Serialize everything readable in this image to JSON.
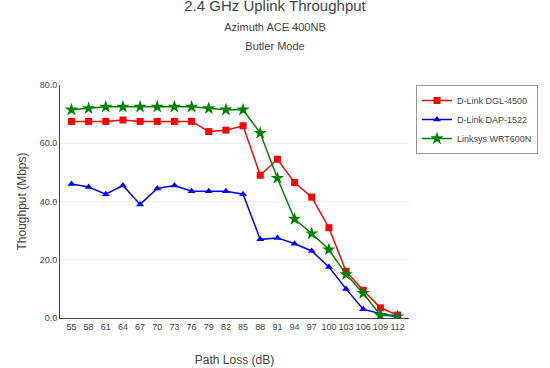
{
  "chart_data": {
    "type": "line",
    "title": "2.4 GHz Uplink Throughput",
    "subtitle": [
      "Azimuth ACE 400NB",
      "Butler Mode"
    ],
    "xlabel": "Path Loss (dB)",
    "ylabel": "Thoughput (Mbps)",
    "x": [
      55,
      58,
      61,
      64,
      67,
      70,
      73,
      76,
      79,
      82,
      85,
      88,
      91,
      94,
      97,
      100,
      103,
      106,
      109,
      112
    ],
    "series": [
      {
        "name": "D-Link DGL-4500",
        "color": "#ff0000",
        "marker": "square",
        "values": [
          67.5,
          67.5,
          67.5,
          68.0,
          67.5,
          67.5,
          67.5,
          67.5,
          64.0,
          64.5,
          66.0,
          49.0,
          54.5,
          46.5,
          41.5,
          31.0,
          16.0,
          9.5,
          3.5,
          1.0
        ]
      },
      {
        "name": "D-Link DAP-1522",
        "color": "#0000ff",
        "marker": "triangle-up",
        "values": [
          46.0,
          45.0,
          42.5,
          45.5,
          39.0,
          44.5,
          45.5,
          43.5,
          43.5,
          43.5,
          42.5,
          27.0,
          27.5,
          25.5,
          23.0,
          17.5,
          10.0,
          3.0,
          1.5,
          0.5
        ]
      },
      {
        "name": "Linksys WRT600N",
        "color": "#008000",
        "marker": "star",
        "values": [
          71.5,
          72.0,
          72.5,
          72.5,
          72.5,
          72.5,
          72.5,
          72.5,
          72.0,
          71.5,
          71.5,
          63.5,
          48.0,
          34.0,
          29.0,
          23.5,
          15.0,
          8.5,
          1.0,
          0.5
        ]
      }
    ],
    "xlim": [
      53,
      114
    ],
    "xticks": [
      55,
      58,
      61,
      64,
      67,
      70,
      73,
      76,
      79,
      82,
      85,
      88,
      91,
      94,
      97,
      100,
      103,
      106,
      109,
      112
    ],
    "ylim": [
      0.0,
      80.0
    ],
    "yticks": [
      {
        "value": 0.0,
        "label": "0.0"
      },
      {
        "value": 20.0,
        "label": "20.0"
      },
      {
        "value": 40.0,
        "label": "40.0"
      },
      {
        "value": 60.0,
        "label": "60.0"
      },
      {
        "value": 80.0,
        "label": "80.0"
      }
    ],
    "grid": "y",
    "legend": "right"
  }
}
